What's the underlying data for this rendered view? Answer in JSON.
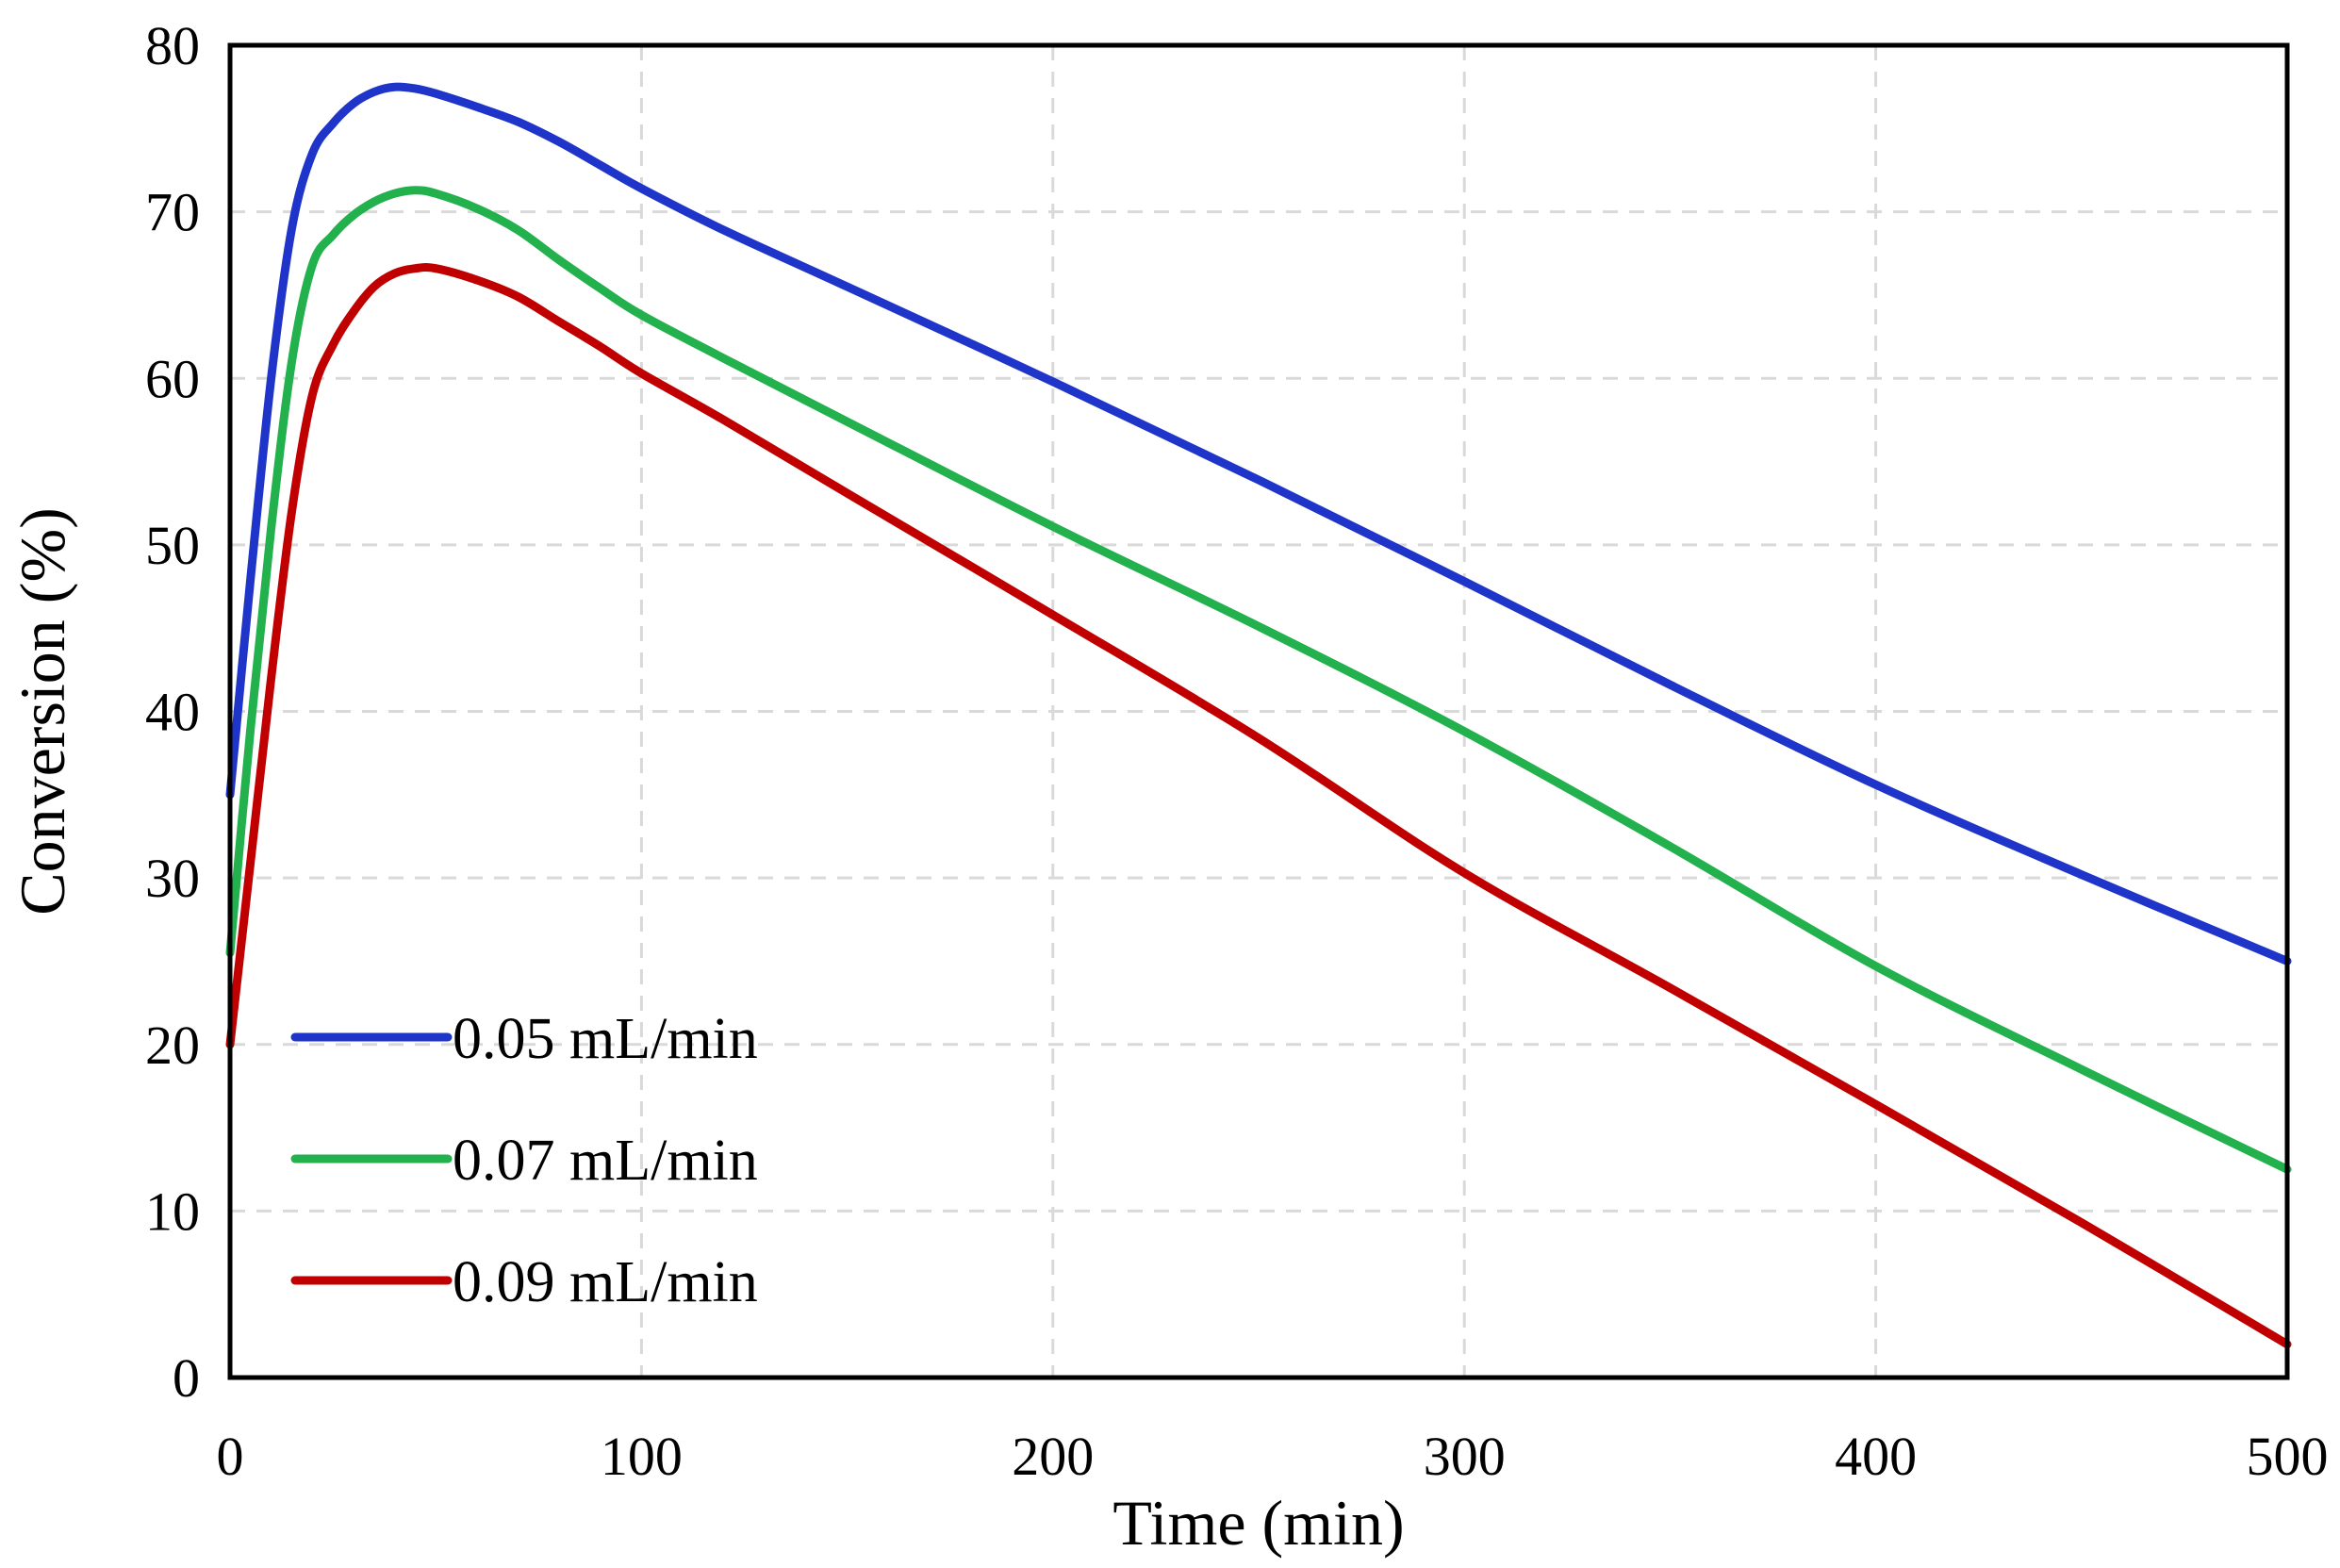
{
  "chart_data": {
    "type": "line",
    "title": "",
    "xlabel": "Time (min)",
    "ylabel": "Conversion (%)",
    "xlim": [
      0,
      500
    ],
    "ylim": [
      0,
      80
    ],
    "xticks": [
      "0",
      "100",
      "200",
      "300",
      "400",
      "500"
    ],
    "yticks": [
      "0",
      "10",
      "20",
      "30",
      "40",
      "50",
      "60",
      "70",
      "80"
    ],
    "grid": true,
    "legend_position": "bottom-left",
    "series": [
      {
        "name": "0.05 mL/min",
        "color": "#1f35c9",
        "points": [
          [
            0,
            35
          ],
          [
            5,
            48
          ],
          [
            10,
            60
          ],
          [
            15,
            69
          ],
          [
            20,
            73.5
          ],
          [
            25,
            75.3
          ],
          [
            30,
            76.5
          ],
          [
            35,
            77.2
          ],
          [
            40,
            77.5
          ],
          [
            45,
            77.4
          ],
          [
            50,
            77.1
          ],
          [
            60,
            76.3
          ],
          [
            70,
            75.4
          ],
          [
            80,
            74.2
          ],
          [
            90,
            72.8
          ],
          [
            100,
            71.4
          ],
          [
            120,
            68.9
          ],
          [
            150,
            65.5
          ],
          [
            200,
            59.8
          ],
          [
            250,
            53.9
          ],
          [
            300,
            47.8
          ],
          [
            350,
            41.6
          ],
          [
            400,
            35.6
          ],
          [
            450,
            30.2
          ],
          [
            500,
            25
          ]
        ]
      },
      {
        "name": "0.07 mL/min",
        "color": "#22b14c",
        "points": [
          [
            0,
            25.5
          ],
          [
            5,
            39
          ],
          [
            10,
            51
          ],
          [
            15,
            61
          ],
          [
            20,
            66.8
          ],
          [
            25,
            68.6
          ],
          [
            30,
            69.8
          ],
          [
            35,
            70.6
          ],
          [
            40,
            71.1
          ],
          [
            45,
            71.3
          ],
          [
            50,
            71.1
          ],
          [
            60,
            70.2
          ],
          [
            70,
            68.9
          ],
          [
            80,
            67.1
          ],
          [
            90,
            65.4
          ],
          [
            100,
            63.8
          ],
          [
            120,
            61.2
          ],
          [
            150,
            57.4
          ],
          [
            200,
            51.1
          ],
          [
            250,
            45.1
          ],
          [
            300,
            38.8
          ],
          [
            350,
            31.9
          ],
          [
            400,
            24.7
          ],
          [
            450,
            18.5
          ],
          [
            500,
            12.5
          ]
        ]
      },
      {
        "name": "0.09 mL/min",
        "color": "#c00000",
        "points": [
          [
            0,
            20
          ],
          [
            5,
            31
          ],
          [
            10,
            42
          ],
          [
            15,
            52
          ],
          [
            20,
            59
          ],
          [
            25,
            62
          ],
          [
            30,
            64
          ],
          [
            35,
            65.5
          ],
          [
            40,
            66.3
          ],
          [
            45,
            66.6
          ],
          [
            50,
            66.6
          ],
          [
            60,
            65.9
          ],
          [
            70,
            64.9
          ],
          [
            80,
            63.4
          ],
          [
            90,
            61.9
          ],
          [
            100,
            60.3
          ],
          [
            120,
            57.5
          ],
          [
            150,
            53.1
          ],
          [
            200,
            45.8
          ],
          [
            250,
            38.4
          ],
          [
            300,
            30.3
          ],
          [
            350,
            23.4
          ],
          [
            400,
            16.4
          ],
          [
            450,
            9.3
          ],
          [
            500,
            2
          ]
        ]
      }
    ]
  }
}
